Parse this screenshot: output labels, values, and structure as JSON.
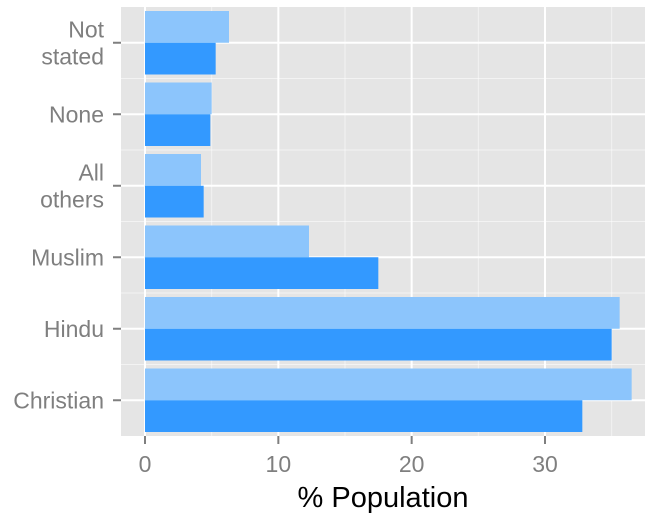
{
  "chart_data": {
    "type": "bar",
    "orientation": "horizontal",
    "categories": [
      [
        "Christian"
      ],
      [
        "Hindu"
      ],
      [
        "Muslim"
      ],
      [
        "All",
        "others"
      ],
      [
        "None"
      ],
      [
        "Not",
        "stated"
      ]
    ],
    "series": [
      {
        "color": "#8cc5fc",
        "values": [
          36.5,
          35.6,
          12.3,
          4.2,
          5.0,
          6.3
        ]
      },
      {
        "color": "#3399ff",
        "values": [
          32.8,
          35.0,
          17.5,
          4.4,
          4.9,
          5.3
        ]
      }
    ],
    "xlabel": "% Population",
    "ylabel": "",
    "title": "",
    "xlim": [
      -1.8,
      37.5
    ],
    "xticks": [
      0,
      10,
      20,
      30
    ],
    "grid": true,
    "panel_background": "#e5e5e5",
    "grid_color": "#ffffff",
    "legend": "none"
  }
}
